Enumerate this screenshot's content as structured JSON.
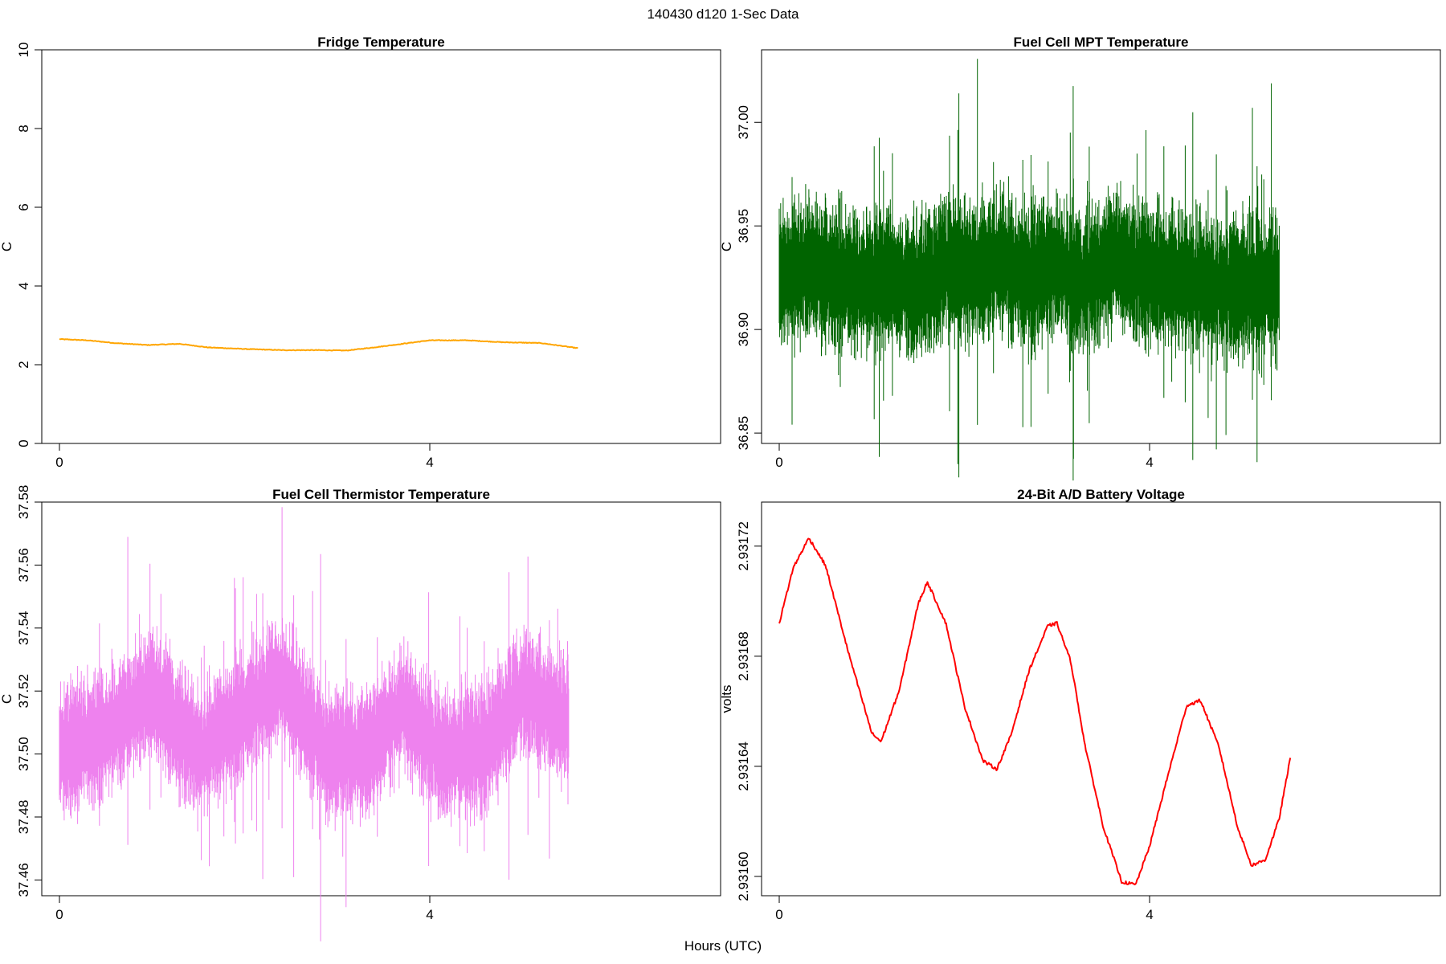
{
  "figure": {
    "title": "140430   d120   1-Sec Data",
    "shared_xlabel": "Hours (UTC)"
  },
  "chart_data": [
    {
      "type": "line",
      "title": "Fridge Temperature",
      "xlabel": "",
      "ylabel": "C",
      "color": "#FFA500",
      "xlim": [
        0,
        6.95
      ],
      "ylim": [
        0,
        10
      ],
      "xticks": [
        0,
        4
      ],
      "yticks": [
        0,
        2,
        4,
        6,
        8,
        10
      ],
      "yticklabels": [
        "0",
        "2",
        "4",
        "6",
        "8",
        "10"
      ],
      "series": [
        {
          "name": "fridge_temp",
          "x": [
            0.0,
            0.3,
            0.6,
            0.95,
            1.3,
            1.6,
            2.0,
            2.4,
            2.8,
            3.1,
            3.4,
            3.7,
            4.0,
            4.4,
            4.8,
            5.2,
            5.6
          ],
          "y": [
            2.65,
            2.62,
            2.55,
            2.5,
            2.53,
            2.44,
            2.4,
            2.37,
            2.37,
            2.36,
            2.44,
            2.53,
            2.62,
            2.62,
            2.57,
            2.55,
            2.42
          ]
        }
      ]
    },
    {
      "type": "line",
      "title": "Fuel Cell MPT Temperature",
      "xlabel": "",
      "ylabel": "C",
      "color": "#006400",
      "xlim": [
        0,
        6.95
      ],
      "ylim": [
        36.845,
        37.035
      ],
      "xticks": [
        0,
        4
      ],
      "yticks": [
        36.85,
        36.9,
        36.95,
        37.0
      ],
      "yticklabels": [
        "36.85",
        "36.90",
        "36.95",
        "37.00"
      ],
      "series": [
        {
          "name": "mpt_temp",
          "x": [
            0.0,
            0.3,
            0.6,
            0.9,
            1.2,
            1.5,
            1.8,
            2.1,
            2.4,
            2.7,
            3.0,
            3.3,
            3.6,
            3.9,
            4.2,
            4.5,
            4.8,
            5.1,
            5.4
          ],
          "y": [
            36.925,
            36.93,
            36.925,
            36.922,
            36.925,
            36.92,
            36.93,
            36.928,
            36.932,
            36.925,
            36.93,
            36.922,
            36.935,
            36.928,
            36.925,
            36.922,
            36.92,
            36.92,
            36.922
          ],
          "band_halfwidth": 0.03
        }
      ]
    },
    {
      "type": "line",
      "title": "Fuel Cell Thermistor Temperature",
      "xlabel": "",
      "ylabel": "C",
      "color": "#EE82EE",
      "xlim": [
        0,
        6.95
      ],
      "ylim": [
        37.455,
        37.58
      ],
      "xticks": [
        0,
        4
      ],
      "yticks": [
        37.46,
        37.48,
        37.5,
        37.52,
        37.54,
        37.56,
        37.58
      ],
      "yticklabels": [
        "37.46",
        "37.48",
        "37.50",
        "37.52",
        "37.54",
        "37.56",
        "37.58"
      ],
      "series": [
        {
          "name": "thermistor_temp",
          "x": [
            0.0,
            0.5,
            1.0,
            1.5,
            2.0,
            2.4,
            2.9,
            3.3,
            3.7,
            4.1,
            4.6,
            5.0,
            5.5
          ],
          "y": [
            37.5,
            37.507,
            37.52,
            37.5,
            37.513,
            37.523,
            37.5,
            37.5,
            37.515,
            37.5,
            37.502,
            37.52,
            37.51
          ],
          "band_halfwidth": 0.018
        }
      ]
    },
    {
      "type": "line",
      "title": "24-Bit A/D Battery Voltage",
      "xlabel": "",
      "ylabel": "volts",
      "color": "#FF0000",
      "xlim": [
        0,
        6.95
      ],
      "ylim": [
        2.931593,
        2.931736
      ],
      "xticks": [
        0,
        4
      ],
      "yticks": [
        2.9316,
        2.93164,
        2.93168,
        2.93172
      ],
      "yticklabels": [
        "2.93160",
        "2.93164",
        "2.93168",
        "2.93172"
      ],
      "series": [
        {
          "name": "battery_voltage",
          "x": [
            0.0,
            0.15,
            0.32,
            0.5,
            0.75,
            1.0,
            1.1,
            1.3,
            1.5,
            1.6,
            1.8,
            2.0,
            2.2,
            2.35,
            2.5,
            2.7,
            2.9,
            3.0,
            3.15,
            3.3,
            3.5,
            3.7,
            3.85,
            4.0,
            4.2,
            4.4,
            4.55,
            4.75,
            4.95,
            5.1,
            5.25,
            5.4,
            5.52
          ],
          "y": [
            2.931692,
            2.931712,
            2.931723,
            2.931713,
            2.931681,
            2.931652,
            2.931649,
            2.931668,
            2.931699,
            2.931707,
            2.931692,
            2.931662,
            2.931642,
            2.931639,
            2.931651,
            2.931675,
            2.931691,
            2.931692,
            2.931678,
            2.931648,
            2.931618,
            2.931598,
            2.931597,
            2.931611,
            2.931637,
            2.931662,
            2.931664,
            2.931647,
            2.931618,
            2.931604,
            2.931606,
            2.931621,
            2.931643
          ]
        }
      ]
    }
  ]
}
